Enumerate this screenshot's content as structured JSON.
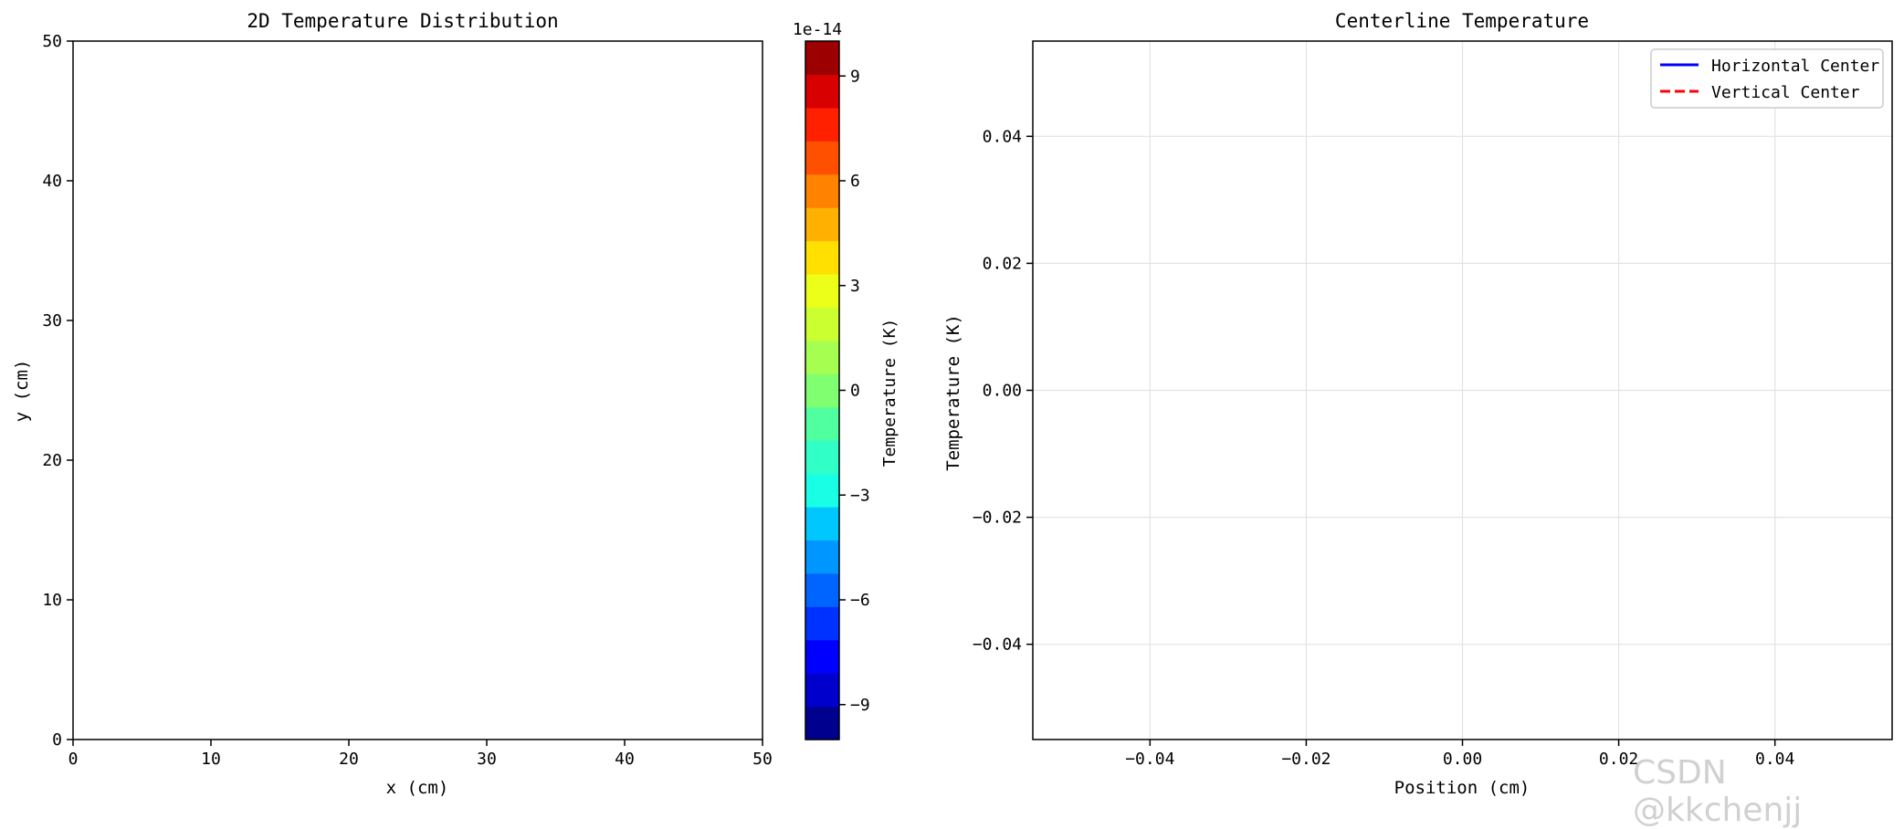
{
  "watermark": "CSDN @kkchenjj",
  "chart_data": [
    {
      "type": "heatmap",
      "title": "2D Temperature Distribution",
      "xlabel": "x (cm)",
      "ylabel": "y (cm)",
      "xlim": [
        0,
        50
      ],
      "ylim": [
        0,
        50
      ],
      "xticks": [
        0,
        10,
        20,
        30,
        40,
        50
      ],
      "yticks": [
        0,
        10,
        20,
        30,
        40,
        50
      ],
      "values": "all zero (field renders blank)",
      "colorbar": {
        "label": "Temperature (K)",
        "scale_label": "1e-14",
        "range": [
          -10,
          10
        ],
        "ticks": [
          -9,
          -6,
          -3,
          0,
          3,
          6,
          9
        ],
        "levels": 20,
        "colors": [
          "#00008f",
          "#0000cc",
          "#0000ff",
          "#0032ff",
          "#0064ff",
          "#0096ff",
          "#00c8ff",
          "#18ffe6",
          "#30ffc8",
          "#50ffa0",
          "#80ff70",
          "#a6ff50",
          "#cbff30",
          "#ecff18",
          "#ffe000",
          "#ffb000",
          "#ff8200",
          "#ff5000",
          "#ff2000",
          "#d80000",
          "#9c0000"
        ]
      }
    },
    {
      "type": "line",
      "title": "Centerline Temperature",
      "xlabel": "Position (cm)",
      "ylabel": "Temperature (K)",
      "xlim": [
        -0.055,
        0.055
      ],
      "ylim": [
        -0.055,
        0.055
      ],
      "xticks": [
        -0.04,
        -0.02,
        0.0,
        0.02,
        0.04
      ],
      "xtick_labels": [
        "−0.04",
        "−0.02",
        "0.00",
        "0.02",
        "0.04"
      ],
      "yticks": [
        -0.04,
        -0.02,
        0.0,
        0.02,
        0.04
      ],
      "ytick_labels": [
        "−0.04",
        "−0.02",
        "0.00",
        "0.02",
        "0.04"
      ],
      "grid": true,
      "legend": "top-right",
      "series": [
        {
          "name": "Horizontal Center",
          "color": "#0000ff",
          "style": "solid",
          "x": [],
          "y": []
        },
        {
          "name": "Vertical Center",
          "color": "#ff0000",
          "style": "dashed",
          "x": [],
          "y": []
        }
      ]
    }
  ]
}
